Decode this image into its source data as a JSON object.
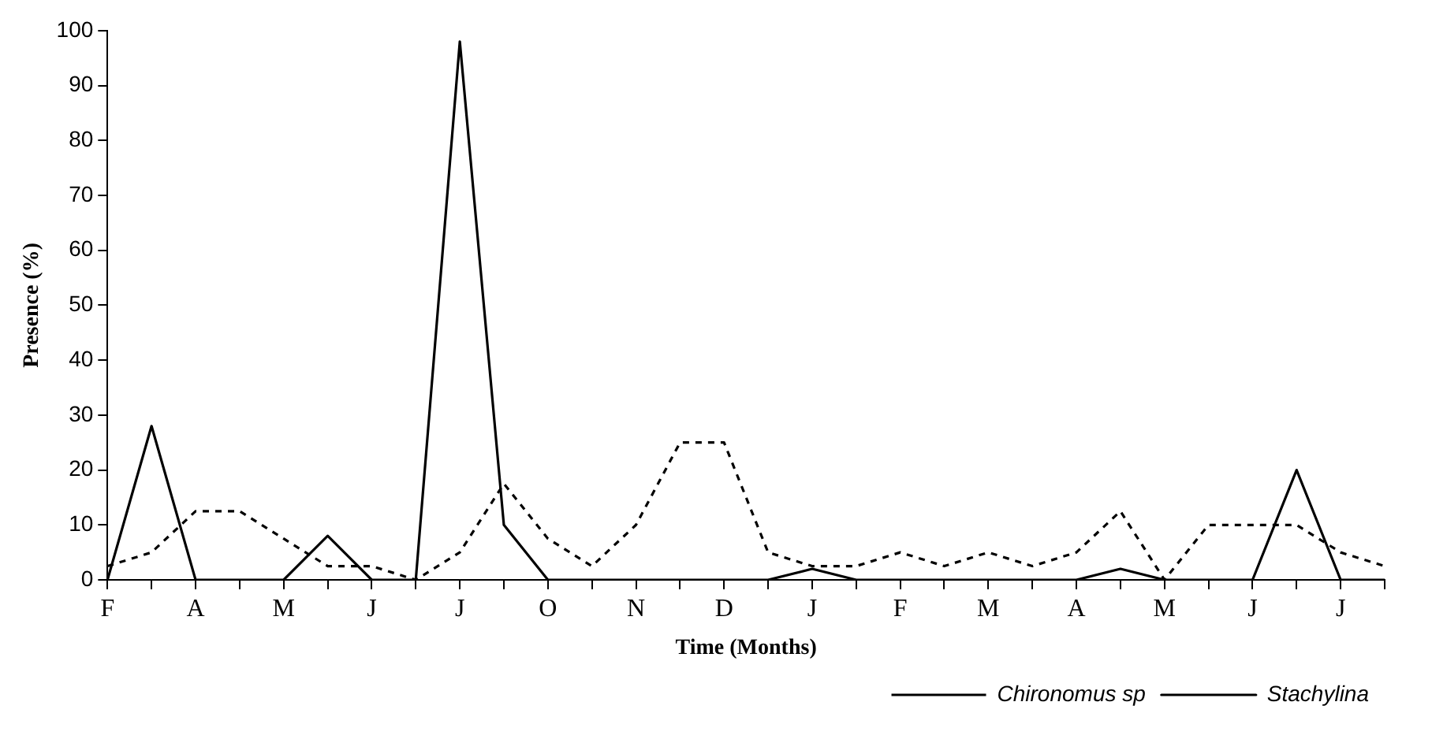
{
  "chart_data": {
    "type": "line",
    "xlabel": "Time (Months)",
    "ylabel": "Presence (%)",
    "categories": [
      "F",
      null,
      "A",
      null,
      "M",
      null,
      "J",
      null,
      "J",
      null,
      "O",
      null,
      "N",
      null,
      "D",
      null,
      "J",
      null,
      "F",
      null,
      "M",
      null,
      "A",
      null,
      "M",
      null,
      "J",
      null,
      "J",
      null
    ],
    "series": [
      {
        "name": "Chironomus sp",
        "color": "#000000",
        "line_style": "dashed",
        "values": [
          2.5,
          5,
          12.5,
          12.5,
          7.5,
          2.5,
          2.5,
          0,
          5,
          17.5,
          7.5,
          2.5,
          10,
          25,
          25,
          5,
          2.5,
          2.5,
          5,
          2.5,
          5,
          2.5,
          5,
          12.5,
          0,
          10,
          10,
          10,
          5,
          2.5
        ]
      },
      {
        "name": "Stachylina",
        "color": "#000000",
        "line_style": "solid",
        "values": [
          0,
          28,
          0,
          0,
          0,
          8,
          0,
          0,
          98,
          10,
          0,
          0,
          0,
          0,
          0,
          0,
          2,
          0,
          0,
          0,
          0,
          0,
          0,
          2,
          0,
          0,
          0,
          20,
          0,
          0
        ]
      }
    ],
    "ylim": [
      0,
      100
    ],
    "yticks": [
      0,
      10,
      20,
      30,
      40,
      50,
      60,
      70,
      80,
      90,
      100
    ],
    "grid": false,
    "legend": "bottom right",
    "marker": "none"
  }
}
